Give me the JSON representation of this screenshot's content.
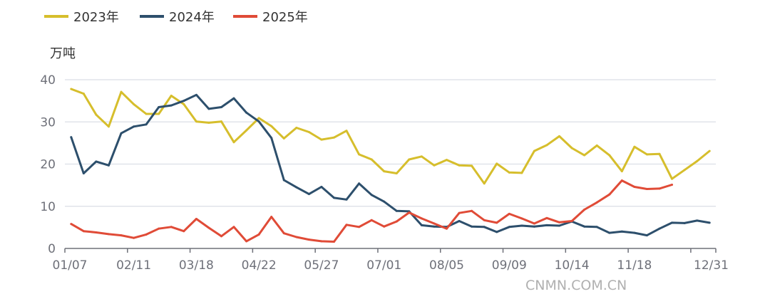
{
  "chart_data": {
    "type": "line",
    "ylabel": "万吨",
    "ylim": [
      0,
      40
    ],
    "yticks": [
      0,
      10,
      20,
      30,
      40
    ],
    "grid": true,
    "legend_position": "top-left",
    "x_tick_labels": [
      "01/07",
      "02/11",
      "03/18",
      "04/22",
      "05/27",
      "07/01",
      "08/05",
      "09/09",
      "10/14",
      "11/18",
      "12/31"
    ],
    "x_tick_indices": [
      0,
      5,
      10,
      15,
      20,
      25,
      30,
      35,
      40,
      45,
      51
    ],
    "category_count": 52,
    "series": [
      {
        "name": "2023年",
        "color": "#d6be2c",
        "values": [
          37.8,
          36.7,
          31.7,
          28.9,
          37.1,
          34.2,
          31.9,
          31.9,
          36.2,
          34.2,
          30.1,
          29.8,
          30.1,
          25.2,
          28.0,
          30.9,
          29.0,
          26.1,
          28.6,
          27.6,
          25.8,
          26.3,
          27.9,
          22.3,
          21.1,
          18.3,
          17.8,
          21.1,
          21.8,
          19.7,
          21.0,
          19.7,
          19.6,
          15.4,
          20.1,
          18.0,
          17.9,
          23.1,
          24.5,
          26.6,
          23.8,
          22.1,
          24.4,
          22.1,
          18.3,
          24.1,
          22.3,
          22.4,
          16.5,
          18.6,
          20.7,
          23.1
        ]
      },
      {
        "name": "2024年",
        "color": "#2d4f6c",
        "values": [
          26.4,
          17.8,
          20.6,
          19.7,
          27.3,
          28.9,
          29.4,
          33.5,
          33.9,
          35.0,
          36.4,
          33.1,
          33.5,
          35.6,
          32.2,
          30.1,
          26.2,
          16.2,
          14.5,
          12.9,
          14.6,
          12.0,
          11.6,
          15.4,
          12.7,
          11.1,
          8.9,
          8.8,
          5.5,
          5.2,
          5.1,
          6.5,
          5.2,
          5.1,
          3.9,
          5.1,
          5.4,
          5.2,
          5.5,
          5.4,
          6.4,
          5.2,
          5.1,
          3.7,
          4.0,
          3.7,
          3.1,
          4.7,
          6.1,
          6.0,
          6.6,
          6.1
        ]
      },
      {
        "name": "2025年",
        "color": "#e04b37",
        "values": [
          5.8,
          4.1,
          3.8,
          3.4,
          3.1,
          2.5,
          3.3,
          4.7,
          5.1,
          4.1,
          7.0,
          4.9,
          2.9,
          5.1,
          1.7,
          3.3,
          7.5,
          3.6,
          2.7,
          2.1,
          1.7,
          1.6,
          5.6,
          5.1,
          6.7,
          5.2,
          6.4,
          8.5,
          7.1,
          5.9,
          4.7,
          8.4,
          8.9,
          6.7,
          6.1,
          8.2,
          7.1,
          5.9,
          7.2,
          6.2,
          6.5,
          9.2,
          10.9,
          12.8,
          16.1,
          14.6,
          14.1,
          14.2,
          15.1
        ]
      }
    ]
  },
  "watermark": "CNMN.COM.CN"
}
